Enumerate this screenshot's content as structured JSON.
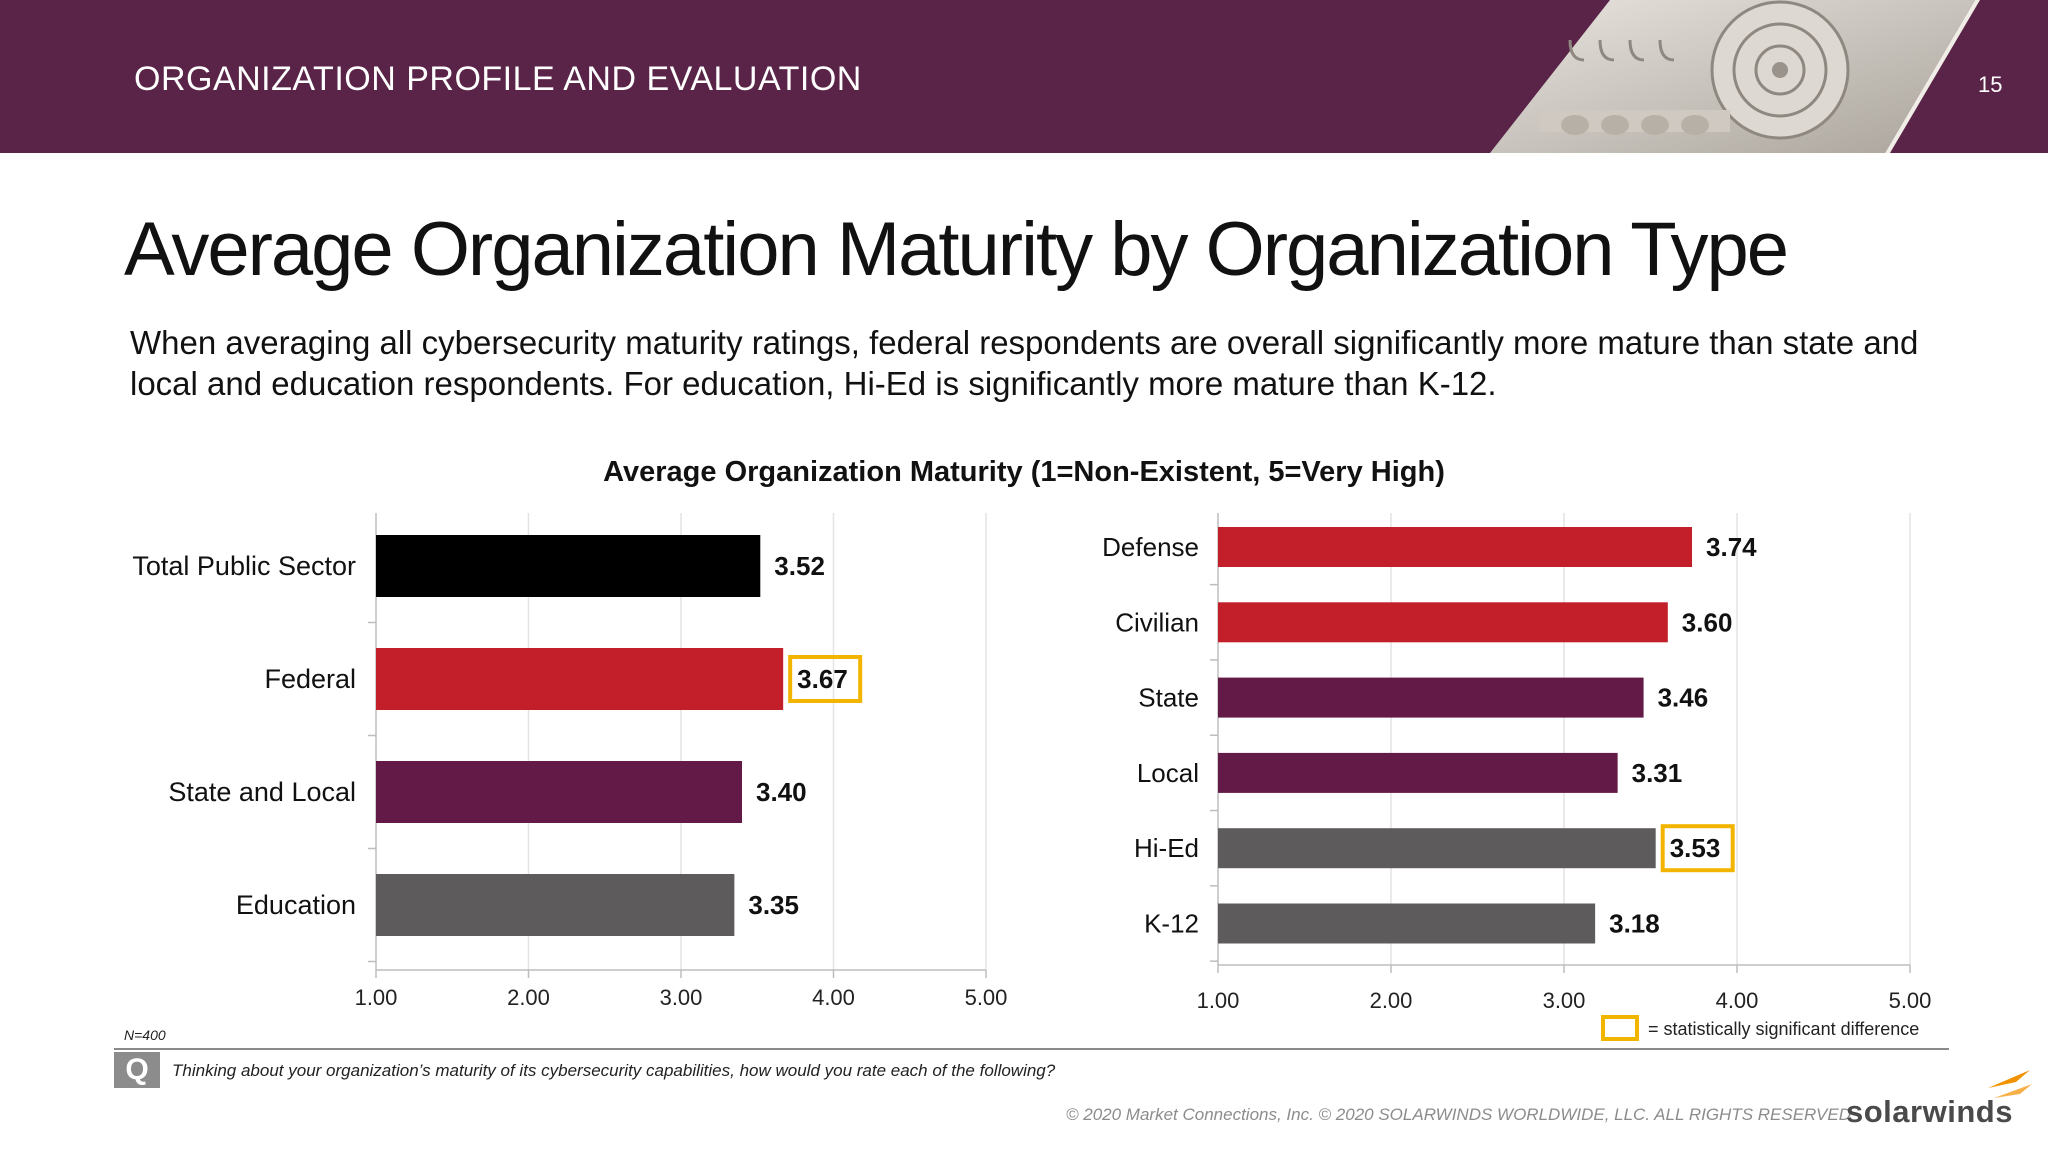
{
  "header": {
    "section_title": "ORGANIZATION PROFILE AND EVALUATION",
    "page_number": "15"
  },
  "slide": {
    "title": "Average Organization Maturity by Organization Type",
    "subtitle": "When averaging all cybersecurity maturity ratings, federal respondents are overall significantly more mature than state and local and education respondents. For education, Hi-Ed is significantly more mature than K-12."
  },
  "chart_title": "Average Organization Maturity (1=Non-Existent, 5=Very High)",
  "chart_data": [
    {
      "type": "bar",
      "orientation": "horizontal",
      "categories": [
        "Total Public Sector",
        "Federal",
        "State and Local",
        "Education"
      ],
      "values": [
        3.52,
        3.67,
        3.4,
        3.35
      ],
      "value_labels": [
        "3.52",
        "3.67",
        "3.40",
        "3.35"
      ],
      "colors": [
        "#000000",
        "#c31f2a",
        "#641a46",
        "#5e5b5d"
      ],
      "significant": [
        false,
        true,
        false,
        false
      ],
      "xlim": [
        1,
        5
      ],
      "x_ticks": [
        "1.00",
        "2.00",
        "3.00",
        "4.00",
        "5.00"
      ],
      "grid": true
    },
    {
      "type": "bar",
      "orientation": "horizontal",
      "categories": [
        "Defense",
        "Civilian",
        "State",
        "Local",
        "Hi-Ed",
        "K-12"
      ],
      "values": [
        3.74,
        3.6,
        3.46,
        3.31,
        3.53,
        3.18
      ],
      "value_labels": [
        "3.74",
        "3.60",
        "3.46",
        "3.31",
        "3.53",
        "3.18"
      ],
      "colors": [
        "#c31f2a",
        "#c31f2a",
        "#641a46",
        "#641a46",
        "#5e5b5d",
        "#5e5b5d"
      ],
      "significant": [
        false,
        false,
        false,
        false,
        true,
        false
      ],
      "xlim": [
        1,
        5
      ],
      "x_ticks": [
        "1.00",
        "2.00",
        "3.00",
        "4.00",
        "5.00"
      ],
      "grid": true
    }
  ],
  "legend": {
    "highlight_color": "#f3b400",
    "text": "= statistically significant difference"
  },
  "footer": {
    "n_label": "N=400",
    "q_icon": "Q",
    "question": "Thinking about your organization’s maturity of its cybersecurity capabilities, how would you rate each of the following?",
    "copyright": "© 2020 Market Connections, Inc. © 2020 SOLARWINDS WORLDWIDE, LLC. ALL RIGHTS RESERVED",
    "logo_text": "solarwinds"
  },
  "colors": {
    "header_bg": "#5a2448",
    "brand_orange": "#f39200"
  }
}
